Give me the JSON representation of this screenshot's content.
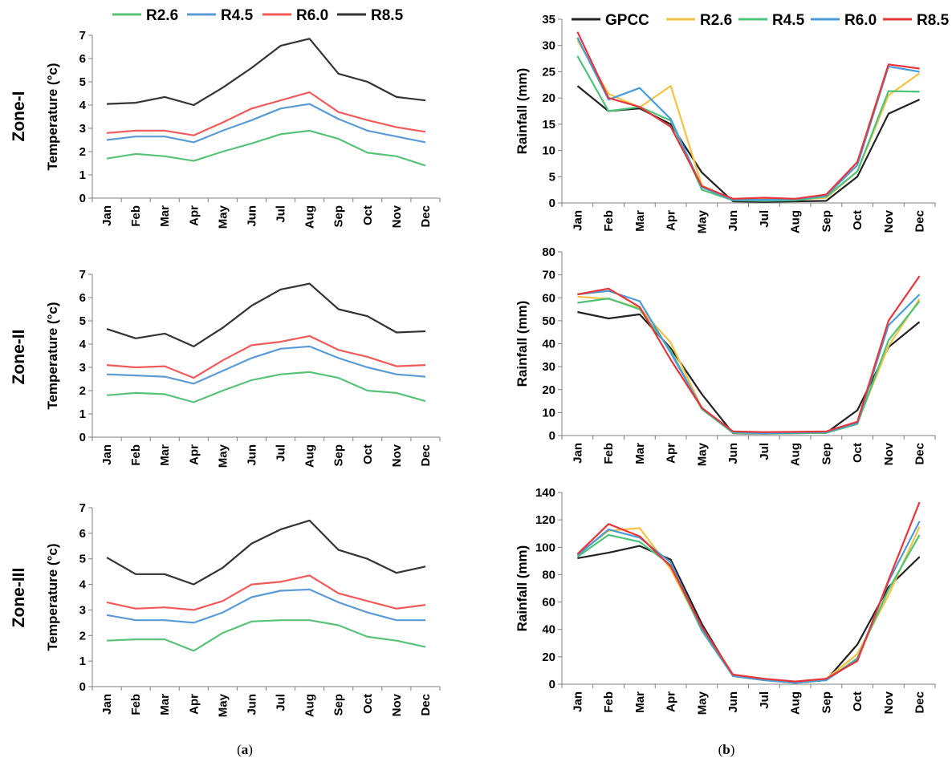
{
  "months": [
    "Jan",
    "Feb",
    "Mar",
    "Apr",
    "May",
    "Jun",
    "Jul",
    "Aug",
    "Sep",
    "Oct",
    "Nov",
    "Dec"
  ],
  "colors": {
    "GPCC": "#222222",
    "R2.6": "#59c279",
    "R4.5": "#5b9bd5",
    "R6.0": "#f05a5a",
    "R8.5": "#333333",
    "R2.6_rain": "#f5c242",
    "R4.5_rain": "#4ec37a",
    "R6.0_rain": "#4a9bd8",
    "R8.5_rain": "#e8353a"
  },
  "legend_left": [
    "R2.6",
    "R4.5",
    "R6.0",
    "R8.5"
  ],
  "legend_right": [
    "GPCC",
    "R2.6",
    "R4.5",
    "R6.0",
    "R8.5"
  ],
  "zones": [
    "Zone-I",
    "Zone-II",
    "Zone-III"
  ],
  "panel_labels": {
    "a_open": "(",
    "a": "a",
    "a_close": ")",
    "b_open": "(",
    "b": "b",
    "b_close": ")"
  },
  "chart_data": [
    {
      "id": "temp1",
      "type": "line",
      "zone": "Zone-I",
      "ylabel": "Temperature (°c)",
      "ylim": [
        0,
        7
      ],
      "ystep": 1,
      "categories": [
        "Jan",
        "Feb",
        "Mar",
        "Apr",
        "May",
        "Jun",
        "Jul",
        "Aug",
        "Sep",
        "Oct",
        "Nov",
        "Dec"
      ],
      "series": [
        {
          "name": "R2.6",
          "colorKey": "R2.6",
          "values": [
            1.7,
            1.9,
            1.8,
            1.6,
            2.0,
            2.35,
            2.75,
            2.9,
            2.55,
            1.95,
            1.8,
            1.4
          ]
        },
        {
          "name": "R4.5",
          "colorKey": "R4.5",
          "values": [
            2.5,
            2.65,
            2.65,
            2.4,
            2.9,
            3.35,
            3.85,
            4.05,
            3.4,
            2.9,
            2.65,
            2.4
          ]
        },
        {
          "name": "R6.0",
          "colorKey": "R6.0",
          "values": [
            2.8,
            2.9,
            2.9,
            2.7,
            3.25,
            3.85,
            4.2,
            4.55,
            3.7,
            3.35,
            3.05,
            2.85
          ]
        },
        {
          "name": "R8.5",
          "colorKey": "R8.5",
          "values": [
            4.05,
            4.1,
            4.35,
            4.0,
            4.75,
            5.6,
            6.55,
            6.85,
            5.35,
            5.0,
            4.35,
            4.2
          ]
        }
      ]
    },
    {
      "id": "rain1",
      "type": "line",
      "zone": "Zone-I",
      "ylabel": "Rainfall (mm)",
      "ylim": [
        0,
        35
      ],
      "ystep": 5,
      "categories": [
        "Jan",
        "Feb",
        "Mar",
        "Apr",
        "May",
        "Jun",
        "Jul",
        "Aug",
        "Sep",
        "Oct",
        "Nov",
        "Dec"
      ],
      "series": [
        {
          "name": "GPCC",
          "colorKey": "GPCC",
          "values": [
            22.3,
            17.5,
            18.0,
            15.0,
            5.8,
            0.3,
            0.2,
            0.3,
            0.4,
            5.0,
            17.0,
            19.7
          ]
        },
        {
          "name": "R2.6",
          "colorKey": "R2.6_rain",
          "values": [
            31.0,
            20.8,
            18.2,
            22.3,
            3.3,
            0.6,
            0.8,
            0.6,
            1.0,
            6.0,
            20.5,
            24.7
          ]
        },
        {
          "name": "R4.5",
          "colorKey": "R4.5_rain",
          "values": [
            28.0,
            17.5,
            18.3,
            15.7,
            2.5,
            0.5,
            0.4,
            0.5,
            1.2,
            6.0,
            21.3,
            21.2
          ]
        },
        {
          "name": "R6.0",
          "colorKey": "R6.0_rain",
          "values": [
            31.5,
            19.7,
            21.9,
            16.0,
            3.0,
            0.6,
            0.6,
            0.7,
            1.4,
            7.2,
            26.0,
            25.0
          ]
        },
        {
          "name": "R8.5",
          "colorKey": "R8.5_rain",
          "values": [
            32.6,
            20.0,
            18.3,
            14.5,
            3.2,
            0.8,
            1.0,
            0.8,
            1.6,
            7.8,
            26.4,
            25.6
          ]
        }
      ]
    },
    {
      "id": "temp2",
      "type": "line",
      "zone": "Zone-II",
      "ylabel": "Temperature (°c)",
      "ylim": [
        0,
        7
      ],
      "ystep": 1,
      "categories": [
        "Jan",
        "Feb",
        "Mar",
        "Apr",
        "May",
        "Jun",
        "Jul",
        "Aug",
        "Sep",
        "Oct",
        "Nov",
        "Dec"
      ],
      "series": [
        {
          "name": "R2.6",
          "colorKey": "R2.6",
          "values": [
            1.8,
            1.9,
            1.85,
            1.5,
            2.0,
            2.45,
            2.7,
            2.8,
            2.55,
            2.0,
            1.9,
            1.55
          ]
        },
        {
          "name": "R4.5",
          "colorKey": "R4.5",
          "values": [
            2.7,
            2.65,
            2.6,
            2.3,
            2.85,
            3.4,
            3.8,
            3.9,
            3.4,
            3.0,
            2.7,
            2.6
          ]
        },
        {
          "name": "R6.0",
          "colorKey": "R6.0",
          "values": [
            3.1,
            3.0,
            3.05,
            2.55,
            3.3,
            3.95,
            4.1,
            4.35,
            3.75,
            3.45,
            3.05,
            3.1
          ]
        },
        {
          "name": "R8.5",
          "colorKey": "R8.5",
          "values": [
            4.65,
            4.25,
            4.45,
            3.9,
            4.7,
            5.65,
            6.35,
            6.6,
            5.5,
            5.2,
            4.5,
            4.55
          ]
        }
      ]
    },
    {
      "id": "rain2",
      "type": "line",
      "zone": "Zone-II",
      "ylabel": "Rainfall (mm)",
      "ylim": [
        0,
        80
      ],
      "ystep": 10,
      "categories": [
        "Jan",
        "Feb",
        "Mar",
        "Apr",
        "May",
        "Jun",
        "Jul",
        "Aug",
        "Sep",
        "Oct",
        "Nov",
        "Dec"
      ],
      "series": [
        {
          "name": "GPCC",
          "colorKey": "GPCC",
          "values": [
            53.8,
            51.0,
            52.8,
            38.0,
            18.0,
            1.0,
            0.8,
            1.0,
            1.2,
            11.0,
            38.5,
            49.5
          ]
        },
        {
          "name": "R2.6",
          "colorKey": "R2.6_rain",
          "values": [
            60.5,
            59.5,
            55.5,
            40.5,
            12.0,
            1.2,
            1.0,
            1.2,
            1.5,
            5.5,
            39.0,
            59.5
          ]
        },
        {
          "name": "R4.5",
          "colorKey": "R4.5_rain",
          "values": [
            57.8,
            59.7,
            55.0,
            37.0,
            11.5,
            1.2,
            0.9,
            1.0,
            1.2,
            5.0,
            41.5,
            58.5
          ]
        },
        {
          "name": "R6.0",
          "colorKey": "R6.0_rain",
          "values": [
            61.5,
            63.0,
            58.5,
            36.0,
            12.0,
            1.5,
            1.0,
            1.3,
            1.5,
            5.5,
            48.0,
            61.5
          ]
        },
        {
          "name": "R8.5",
          "colorKey": "R8.5_rain",
          "values": [
            61.5,
            64.0,
            56.0,
            33.0,
            12.0,
            1.8,
            1.5,
            1.6,
            1.8,
            6.0,
            50.0,
            69.5
          ]
        }
      ]
    },
    {
      "id": "temp3",
      "type": "line",
      "zone": "Zone-III",
      "ylabel": "Temperature (°c)",
      "ylim": [
        0,
        7
      ],
      "ystep": 1,
      "categories": [
        "Jan",
        "Feb",
        "Mar",
        "Apr",
        "May",
        "Jun",
        "Jul",
        "Aug",
        "Sep",
        "Oct",
        "Nov",
        "Dec"
      ],
      "series": [
        {
          "name": "R2.6",
          "colorKey": "R2.6",
          "values": [
            1.8,
            1.85,
            1.85,
            1.4,
            2.1,
            2.55,
            2.6,
            2.6,
            2.4,
            1.95,
            1.8,
            1.55
          ]
        },
        {
          "name": "R4.5",
          "colorKey": "R4.5",
          "values": [
            2.8,
            2.6,
            2.6,
            2.5,
            2.9,
            3.5,
            3.75,
            3.8,
            3.3,
            2.9,
            2.6,
            2.6
          ]
        },
        {
          "name": "R6.0",
          "colorKey": "R6.0",
          "values": [
            3.3,
            3.05,
            3.1,
            3.0,
            3.35,
            4.0,
            4.1,
            4.35,
            3.65,
            3.35,
            3.05,
            3.2
          ]
        },
        {
          "name": "R8.5",
          "colorKey": "R8.5",
          "values": [
            5.05,
            4.4,
            4.4,
            4.0,
            4.65,
            5.6,
            6.15,
            6.5,
            5.35,
            5.0,
            4.45,
            4.7
          ]
        }
      ]
    },
    {
      "id": "rain3",
      "type": "line",
      "zone": "Zone-III",
      "ylabel": "Rainfall (mm)",
      "ylim": [
        0,
        140
      ],
      "ystep": 20,
      "categories": [
        "Jan",
        "Feb",
        "Mar",
        "Apr",
        "May",
        "Jun",
        "Jul",
        "Aug",
        "Sep",
        "Oct",
        "Nov",
        "Dec"
      ],
      "series": [
        {
          "name": "GPCC",
          "colorKey": "GPCC",
          "values": [
            92,
            96,
            101,
            91,
            44,
            6,
            3,
            1,
            3,
            29,
            71,
            93
          ]
        },
        {
          "name": "R2.6",
          "colorKey": "R2.6_rain",
          "values": [
            95,
            112,
            114,
            84,
            40,
            6,
            3,
            1,
            4,
            22,
            65,
            115
          ]
        },
        {
          "name": "R4.5",
          "colorKey": "R4.5_rain",
          "values": [
            93,
            109,
            104,
            87,
            39,
            6,
            3,
            1,
            3,
            19,
            69,
            109
          ]
        },
        {
          "name": "R6.0",
          "colorKey": "R6.0_rain",
          "values": [
            94,
            113,
            107,
            89,
            40,
            6,
            3,
            1,
            3,
            18,
            75,
            119
          ]
        },
        {
          "name": "R8.5",
          "colorKey": "R8.5_rain",
          "values": [
            95,
            117,
            108,
            86,
            42,
            7,
            4,
            2,
            4,
            17,
            76,
            133
          ]
        }
      ]
    }
  ]
}
